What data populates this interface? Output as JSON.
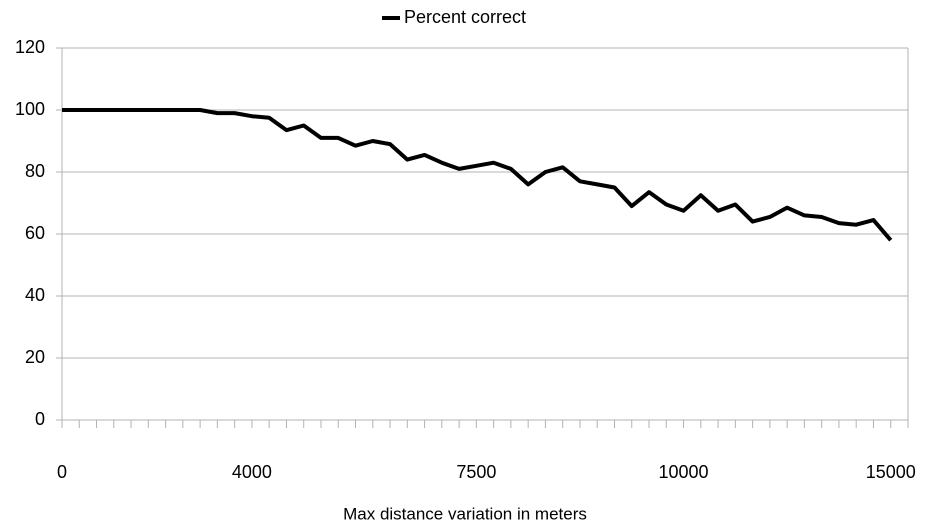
{
  "chart_data": {
    "type": "line",
    "x_label": "Max distance variation in meters",
    "categories": [
      "0",
      null,
      null,
      null,
      null,
      null,
      null,
      null,
      null,
      null,
      null,
      "4000",
      null,
      null,
      null,
      null,
      null,
      null,
      null,
      null,
      null,
      null,
      null,
      null,
      "7500",
      null,
      null,
      null,
      null,
      null,
      null,
      null,
      null,
      null,
      null,
      null,
      "10000",
      null,
      null,
      null,
      null,
      null,
      null,
      null,
      null,
      null,
      null,
      null,
      "15000"
    ],
    "series": [
      {
        "name": "Percent correct",
        "color": "#000000",
        "values": [
          100,
          100,
          100,
          100,
          100,
          100,
          100,
          100,
          100,
          99,
          99,
          98,
          97.5,
          93.5,
          95,
          91,
          91,
          88.5,
          90,
          89,
          84,
          85.5,
          83,
          81,
          82,
          83,
          81,
          76,
          80,
          81.5,
          77,
          76,
          75,
          69,
          73.5,
          69.5,
          67.5,
          72.5,
          67.5,
          69.5,
          64,
          65.5,
          68.5,
          66,
          65.5,
          63.5,
          63,
          64.5,
          58
        ]
      }
    ],
    "ylim": [
      0,
      120
    ],
    "yticks": [
      0,
      20,
      40,
      60,
      80,
      100,
      120
    ],
    "grid": true,
    "legend": "top"
  }
}
